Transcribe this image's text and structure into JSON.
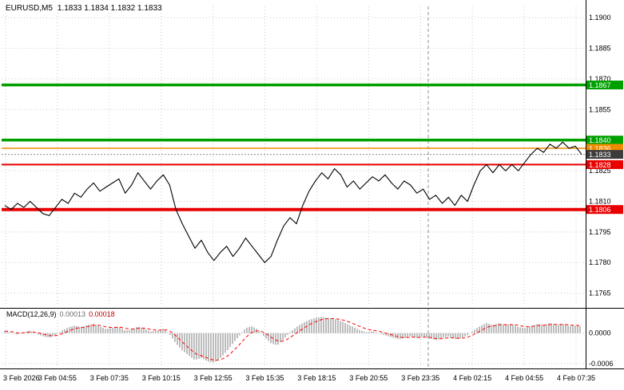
{
  "window": {
    "symbol": "EURUSD,M5",
    "ohlc": "1.1833 1.1834 1.1832 1.1833"
  },
  "chart_data": {
    "type": "line",
    "title": "EURUSD,M5",
    "x_labels": [
      "3 Feb 2026",
      "3 Feb 04:55",
      "3 Feb 07:35",
      "3 Feb 10:15",
      "3 Feb 12:55",
      "3 Feb 15:35",
      "3 Feb 18:15",
      "3 Feb 20:55",
      "3 Feb 23:35",
      "4 Feb 02:15",
      "4 Feb 04:55",
      "4 Feb 07:35"
    ],
    "y_ticks": [
      1.19,
      1.1885,
      1.187,
      1.1855,
      1.184,
      1.1825,
      1.181,
      1.1795,
      1.178,
      1.1765
    ],
    "ylim": [
      1.1759,
      1.19055
    ],
    "grid_color": "#c8c8c8",
    "price_color": "#000000",
    "prices": [
      1.1808,
      1.1806,
      1.1809,
      1.1807,
      1.181,
      1.1807,
      1.1804,
      1.1803,
      1.1807,
      1.1811,
      1.1809,
      1.1814,
      1.1812,
      1.1816,
      1.1819,
      1.1815,
      1.1817,
      1.1819,
      1.1821,
      1.1814,
      1.1818,
      1.1824,
      1.182,
      1.1816,
      1.182,
      1.1823,
      1.1818,
      1.1806,
      1.1799,
      1.1793,
      1.1787,
      1.1791,
      1.1785,
      1.1781,
      1.1785,
      1.1788,
      1.1783,
      1.1787,
      1.1792,
      1.1788,
      1.1784,
      1.178,
      1.1783,
      1.1791,
      1.1798,
      1.1802,
      1.1799,
      1.1808,
      1.1815,
      1.182,
      1.1824,
      1.1821,
      1.1826,
      1.1823,
      1.1817,
      1.182,
      1.1816,
      1.1819,
      1.1822,
      1.182,
      1.1823,
      1.1819,
      1.1816,
      1.182,
      1.1818,
      1.1814,
      1.1816,
      1.1811,
      1.1813,
      1.1809,
      1.1812,
      1.1808,
      1.1813,
      1.181,
      1.1818,
      1.1825,
      1.1828,
      1.1824,
      1.1828,
      1.1825,
      1.1828,
      1.1825,
      1.1829,
      1.1833,
      1.1836,
      1.1834,
      1.1838,
      1.1836,
      1.1839,
      1.1836,
      1.1837,
      1.1833
    ],
    "hlines": [
      {
        "price": 1.1867,
        "label": "1.1867",
        "color": "#00a000",
        "width": 3.5
      },
      {
        "price": 1.184,
        "label": "1.1840",
        "color": "#00a000",
        "width": 3.5
      },
      {
        "price": 1.1836,
        "label": "1.1836",
        "color": "#f08c00",
        "width": 1.5
      },
      {
        "price": 1.1828,
        "label": "1.1828",
        "color": "#e80000",
        "width": 2
      },
      {
        "price": 1.1806,
        "label": "1.1806",
        "color": "#e80000",
        "width": 4
      }
    ],
    "bid": {
      "price": 1.1833,
      "label": "1.1833",
      "badge_color": "#3c3c3c",
      "line_color": "#8a8a8a"
    },
    "macd": {
      "name": "MACD(12,26,9)",
      "value_main": "0.00013",
      "value_signal": "0.00018",
      "y_ticks": [
        0.0,
        -0.0006
      ],
      "ylim": [
        -0.00068,
        0.00042
      ],
      "colors": {
        "hist": "#bdbdbd",
        "signal": "#ff0000"
      },
      "values": [
        4e-05,
        1e-05,
        -3e-05,
        2e-05,
        5e-05,
        -1e-05,
        -6e-05,
        -9e-05,
        -4e-05,
        5e-05,
        0.00011,
        0.00015,
        0.00012,
        0.00016,
        0.00019,
        0.00013,
        8e-05,
        0.00011,
        0.00013,
        5e-05,
        7e-05,
        0.00013,
        9e-05,
        3e-05,
        5e-05,
        9e-05,
        -2e-05,
        -0.0002,
        -0.00034,
        -0.00044,
        -0.00053,
        -0.00049,
        -0.00056,
        -0.00058,
        -0.00049,
        -0.00036,
        -0.0002,
        -5e-05,
        0.0001,
        0.00014,
        6e-05,
        -8e-05,
        -0.0002,
        -0.00024,
        -0.00012,
        2e-05,
        0.00012,
        0.0002,
        0.00026,
        0.0003,
        0.00032,
        0.0003,
        0.00028,
        0.00024,
        0.00018,
        0.00012,
        6e-05,
        2e-05,
        4e-05,
        0.0,
        -4e-05,
        -8e-05,
        -0.00012,
        -0.0001,
        -6e-05,
        -0.0001,
        -6e-05,
        -0.0001,
        -0.00014,
        -0.0001,
        -6e-05,
        -0.00012,
        -0.0001,
        -4e-05,
        6e-05,
        0.00014,
        0.0002,
        0.00016,
        0.0002,
        0.00016,
        0.00018,
        0.00012,
        0.0001,
        0.00014,
        0.00018,
        0.00016,
        0.0002,
        0.00016,
        0.00018,
        0.00014,
        0.00015,
        0.00013
      ]
    }
  }
}
